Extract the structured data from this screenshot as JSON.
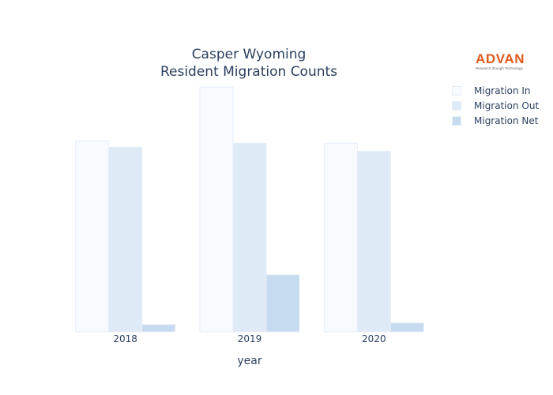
{
  "chart_data": {
    "type": "bar",
    "title_line1": "Casper Wyoming",
    "title_line2": "Resident Migration Counts",
    "xlabel": "year",
    "ylabel": "",
    "categories": [
      "2018",
      "2019",
      "2020"
    ],
    "ylim": [
      0,
      3150
    ],
    "series": [
      {
        "name": "Migration In",
        "color": "#f7fbff",
        "values": [
          2380,
          3050,
          2350
        ]
      },
      {
        "name": "Migration Out",
        "color": "#deebf7",
        "values": [
          2300,
          2350,
          2250
        ]
      },
      {
        "name": "Migration Net",
        "color": "#c6dbef",
        "values": [
          90,
          710,
          110
        ]
      }
    ],
    "grid": false,
    "legend_position": "top-right"
  },
  "logo": {
    "word": "ADVAN",
    "tagline": "Research through Technology"
  }
}
